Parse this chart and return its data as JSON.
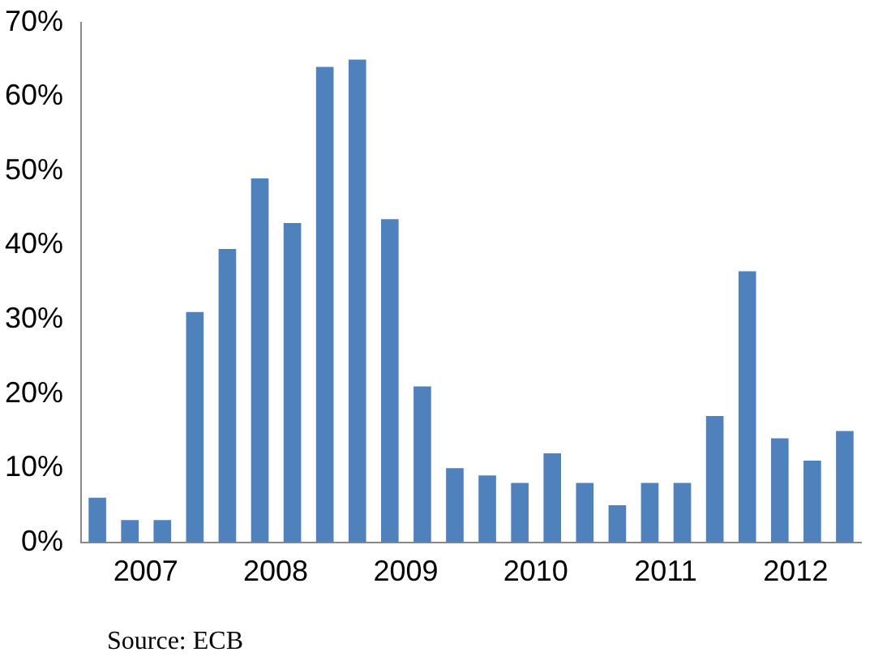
{
  "chart_data": {
    "type": "bar",
    "categories": [
      null,
      "2007",
      null,
      null,
      null,
      "2008",
      null,
      null,
      null,
      "2009",
      null,
      null,
      null,
      "2010",
      null,
      null,
      null,
      "2011",
      null,
      null,
      null,
      "2012",
      null,
      null
    ],
    "values": [
      6,
      3,
      3,
      31,
      39.5,
      49,
      43,
      64,
      65,
      43.5,
      21,
      10,
      9,
      8,
      12,
      8,
      5,
      8,
      8,
      17,
      36.5,
      14,
      11,
      15
    ],
    "color": "#4f81bd",
    "ylim": [
      0,
      70
    ],
    "yticks": [
      {
        "value": 0,
        "label": "0%"
      },
      {
        "value": 10,
        "label": "10%"
      },
      {
        "value": 20,
        "label": "20%"
      },
      {
        "value": 30,
        "label": "30%"
      },
      {
        "value": 40,
        "label": "40%"
      },
      {
        "value": 50,
        "label": "50%"
      },
      {
        "value": 60,
        "label": "60%"
      },
      {
        "value": 70,
        "label": "70%"
      }
    ],
    "grid": false,
    "annotations": [
      "Source: ECB"
    ]
  }
}
